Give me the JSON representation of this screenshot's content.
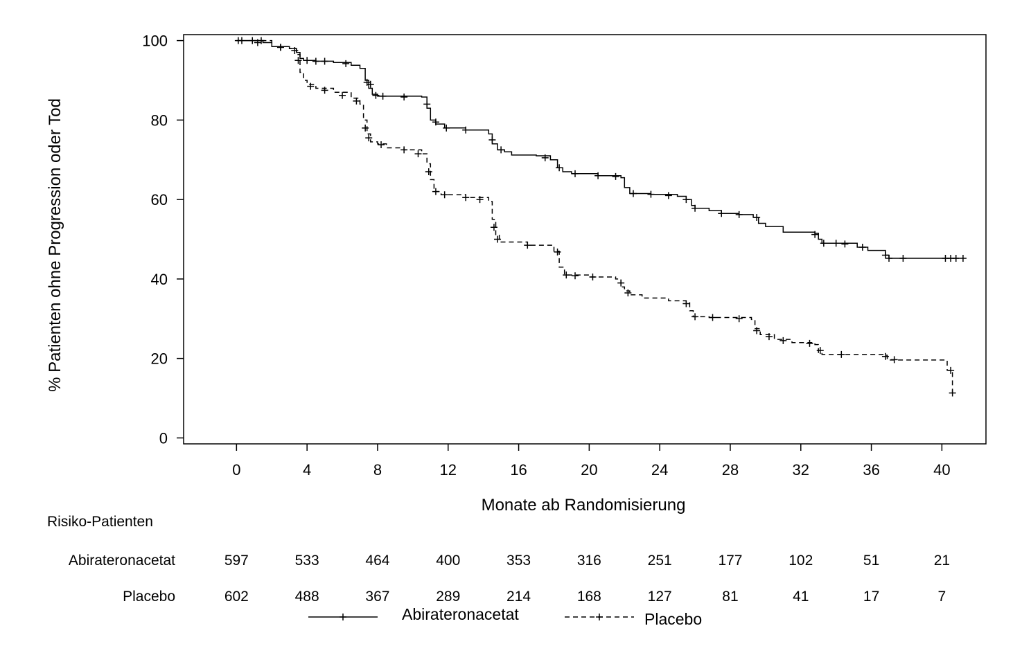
{
  "chart_data": {
    "type": "line",
    "chart_kind": "kaplan-meier step curve",
    "title": "",
    "xlabel": "Monate ab Randomisierung",
    "ylabel": "% Patienten ohne Progression oder Tod",
    "xlim": [
      -3,
      42.5
    ],
    "ylim": [
      -1.5,
      101.5
    ],
    "x_ticks": [
      0,
      4,
      8,
      12,
      16,
      20,
      24,
      28,
      32,
      36,
      40
    ],
    "y_ticks": [
      0,
      20,
      40,
      60,
      80,
      100
    ],
    "grid": false,
    "legend": {
      "placement": "bottom-center"
    },
    "series": [
      {
        "name": "Abirateronacetat",
        "line_style": "solid",
        "color": "#000000",
        "points": [
          [
            0,
            100
          ],
          [
            1.5,
            99.5
          ],
          [
            2,
            98.5
          ],
          [
            3,
            98
          ],
          [
            3.4,
            97
          ],
          [
            3.6,
            95.5
          ],
          [
            3.8,
            95
          ],
          [
            4.5,
            94.8
          ],
          [
            5.5,
            94.5
          ],
          [
            6.5,
            93.8
          ],
          [
            7,
            93
          ],
          [
            7.3,
            90
          ],
          [
            7.5,
            88
          ],
          [
            7.7,
            86.5
          ],
          [
            8,
            86
          ],
          [
            10.5,
            85.8
          ],
          [
            10.8,
            83
          ],
          [
            11,
            80
          ],
          [
            11.3,
            79
          ],
          [
            11.8,
            78
          ],
          [
            13,
            77.5
          ],
          [
            14.3,
            76.5
          ],
          [
            14.5,
            74
          ],
          [
            14.8,
            72.5
          ],
          [
            15.2,
            72
          ],
          [
            15.6,
            71.2
          ],
          [
            17,
            71
          ],
          [
            17.8,
            70
          ],
          [
            18.2,
            68
          ],
          [
            18.5,
            67
          ],
          [
            19,
            66.5
          ],
          [
            20.5,
            66
          ],
          [
            21.8,
            65.5
          ],
          [
            22,
            63
          ],
          [
            22.3,
            61.5
          ],
          [
            23.5,
            61.3
          ],
          [
            25,
            60.8
          ],
          [
            25.5,
            60
          ],
          [
            25.8,
            58.5
          ],
          [
            26,
            57.8
          ],
          [
            26.8,
            57.2
          ],
          [
            27.5,
            56.5
          ],
          [
            28.5,
            56.2
          ],
          [
            29.3,
            55.5
          ],
          [
            29.6,
            54
          ],
          [
            30,
            53.2
          ],
          [
            31,
            51.8
          ],
          [
            32.8,
            51.5
          ],
          [
            33,
            50
          ],
          [
            33.2,
            49
          ],
          [
            35.2,
            48
          ],
          [
            35.8,
            47.2
          ],
          [
            36.8,
            46
          ],
          [
            37,
            45.2
          ],
          [
            41,
            45.2
          ]
        ],
        "censor_marks": [
          [
            0.1,
            100
          ],
          [
            0.9,
            100
          ],
          [
            1.4,
            100
          ],
          [
            2.5,
            98.3
          ],
          [
            3.3,
            97.5
          ],
          [
            4,
            95
          ],
          [
            4.5,
            94.8
          ],
          [
            5,
            94.8
          ],
          [
            6.2,
            94.2
          ],
          [
            7.4,
            89.5
          ],
          [
            7.6,
            89
          ],
          [
            7.9,
            86.2
          ],
          [
            8.3,
            86
          ],
          [
            9.5,
            85.8
          ],
          [
            10.8,
            84
          ],
          [
            11.3,
            79.5
          ],
          [
            11.9,
            78
          ],
          [
            13,
            77.5
          ],
          [
            14.5,
            75
          ],
          [
            15,
            72.5
          ],
          [
            17.5,
            70.5
          ],
          [
            18.3,
            68
          ],
          [
            19.2,
            66.5
          ],
          [
            20.5,
            66
          ],
          [
            21.5,
            65.8
          ],
          [
            22.5,
            61.5
          ],
          [
            23.5,
            61.3
          ],
          [
            24.5,
            61
          ],
          [
            25.5,
            60
          ],
          [
            26,
            57.8
          ],
          [
            27.5,
            56.5
          ],
          [
            28.5,
            56.2
          ],
          [
            29.5,
            55.5
          ],
          [
            32.8,
            51.2
          ],
          [
            33.3,
            49
          ],
          [
            34,
            49
          ],
          [
            34.5,
            48.8
          ],
          [
            35.5,
            48
          ],
          [
            36.8,
            46
          ],
          [
            37,
            45.2
          ],
          [
            37.8,
            45.2
          ],
          [
            40.2,
            45.2
          ],
          [
            40.5,
            45.2
          ],
          [
            40.8,
            45.2
          ],
          [
            41.2,
            45.2
          ]
        ]
      },
      {
        "name": "Placebo",
        "line_style": "dashed",
        "color": "#000000",
        "points": [
          [
            0,
            100
          ],
          [
            2,
            98.5
          ],
          [
            3,
            98
          ],
          [
            3.4,
            96.5
          ],
          [
            3.6,
            92
          ],
          [
            3.8,
            90
          ],
          [
            4,
            89
          ],
          [
            4.5,
            88
          ],
          [
            5.5,
            87
          ],
          [
            6.5,
            85.5
          ],
          [
            7,
            84
          ],
          [
            7.2,
            80
          ],
          [
            7.4,
            76.5
          ],
          [
            7.6,
            74.5
          ],
          [
            8,
            74
          ],
          [
            8.5,
            73
          ],
          [
            9.5,
            72.5
          ],
          [
            10.5,
            71.5
          ],
          [
            10.8,
            69
          ],
          [
            11,
            65
          ],
          [
            11.2,
            62
          ],
          [
            11.6,
            61.2
          ],
          [
            13,
            60.5
          ],
          [
            14.3,
            59.5
          ],
          [
            14.5,
            55
          ],
          [
            14.7,
            51
          ],
          [
            14.9,
            49.3
          ],
          [
            16.5,
            48.5
          ],
          [
            18,
            47
          ],
          [
            18.3,
            43
          ],
          [
            18.6,
            41
          ],
          [
            20,
            40.5
          ],
          [
            21.5,
            40
          ],
          [
            21.8,
            38
          ],
          [
            22,
            37
          ],
          [
            22.3,
            36
          ],
          [
            23,
            35.2
          ],
          [
            24.5,
            34.5
          ],
          [
            25.5,
            34
          ],
          [
            25.7,
            32
          ],
          [
            25.9,
            30.5
          ],
          [
            26.8,
            30.3
          ],
          [
            29.2,
            29.8
          ],
          [
            29.4,
            27.5
          ],
          [
            29.7,
            26
          ],
          [
            30.5,
            24.8
          ],
          [
            31.5,
            24
          ],
          [
            32.8,
            23.5
          ],
          [
            33,
            21.5
          ],
          [
            33.2,
            21
          ],
          [
            36.8,
            20.8
          ],
          [
            36.9,
            19.6
          ],
          [
            40.2,
            19.6
          ],
          [
            40.3,
            17
          ],
          [
            40.6,
            16.8
          ],
          [
            40.6,
            11.3
          ],
          [
            40.7,
            11.3
          ]
        ],
        "censor_marks": [
          [
            0.3,
            100
          ],
          [
            1.2,
            99.5
          ],
          [
            2.5,
            98.3
          ],
          [
            3.5,
            95
          ],
          [
            4.2,
            88.5
          ],
          [
            5,
            87.5
          ],
          [
            6,
            86.2
          ],
          [
            6.8,
            84.8
          ],
          [
            7.3,
            78
          ],
          [
            7.5,
            75.5
          ],
          [
            8.2,
            73.8
          ],
          [
            9.5,
            72.5
          ],
          [
            10.3,
            71.5
          ],
          [
            10.9,
            67
          ],
          [
            11.3,
            62
          ],
          [
            11.8,
            61.2
          ],
          [
            13,
            60.5
          ],
          [
            13.8,
            60
          ],
          [
            14.6,
            53
          ],
          [
            14.8,
            50
          ],
          [
            16.5,
            48.5
          ],
          [
            18.2,
            46.8
          ],
          [
            18.7,
            41
          ],
          [
            19.2,
            40.8
          ],
          [
            20.2,
            40.5
          ],
          [
            21.8,
            39
          ],
          [
            22.2,
            36.5
          ],
          [
            25.5,
            33.8
          ],
          [
            26,
            30.5
          ],
          [
            27,
            30.3
          ],
          [
            28.5,
            30
          ],
          [
            29.5,
            27
          ],
          [
            30.2,
            25.5
          ],
          [
            31,
            24.5
          ],
          [
            32.5,
            23.8
          ],
          [
            33.1,
            22
          ],
          [
            34.3,
            21
          ],
          [
            36.8,
            20.5
          ],
          [
            37.3,
            19.7
          ],
          [
            40.5,
            17
          ],
          [
            40.6,
            11.3
          ]
        ]
      }
    ]
  },
  "risk_table": {
    "header": "Risiko-Patienten",
    "times": [
      0,
      4,
      8,
      12,
      16,
      20,
      24,
      28,
      32,
      36,
      40
    ],
    "rows": [
      {
        "label": "Abirateronacetat",
        "values": [
          "597",
          "533",
          "464",
          "400",
          "353",
          "316",
          "251",
          "177",
          "102",
          "51",
          "21"
        ]
      },
      {
        "label": "Placebo",
        "values": [
          "602",
          "488",
          "367",
          "289",
          "214",
          "168",
          "127",
          "81",
          "41",
          "17",
          "7"
        ]
      }
    ]
  }
}
